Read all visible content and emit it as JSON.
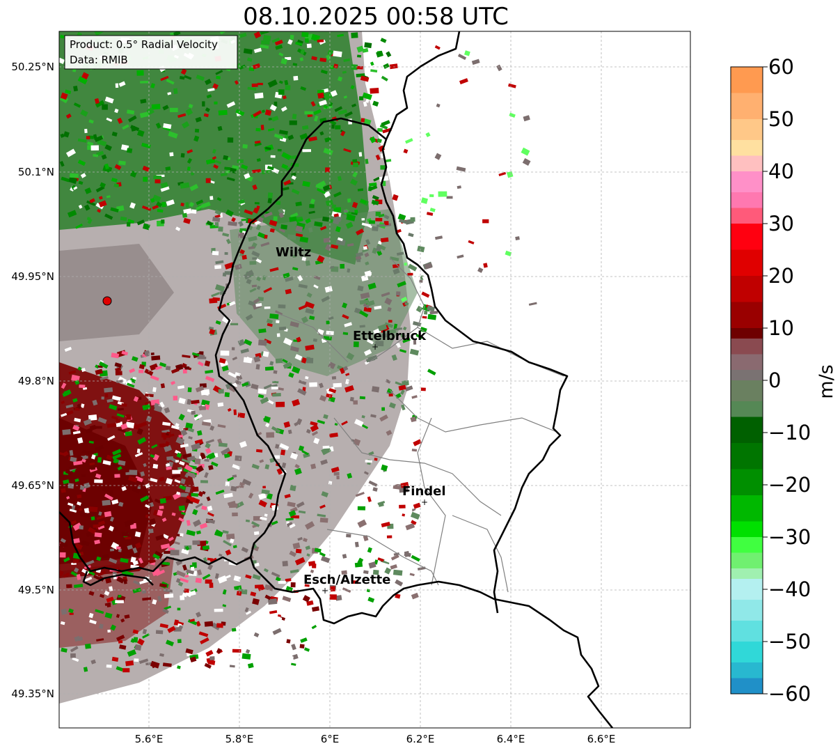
{
  "title": "08.10.2025 00:58 UTC",
  "info_box": {
    "product": "Product: 0.5° Radial Velocity",
    "data_source": "Data: RMIB"
  },
  "map": {
    "y_ticks": [
      "50.25°N",
      "50.1°N",
      "49.95°N",
      "49.8°N",
      "49.65°N",
      "49.5°N",
      "49.35°N"
    ],
    "x_ticks": [
      "5.6°E",
      "5.8°E",
      "6°E",
      "6.2°E",
      "6.4°E",
      "6.6°E"
    ],
    "cities": [
      {
        "name": "Wiltz"
      },
      {
        "name": "Ettelbruck"
      },
      {
        "name": "Findel"
      },
      {
        "name": "Esch/Alzette"
      }
    ]
  },
  "colorbar": {
    "unit": "m/s",
    "tick_labels": [
      "60",
      "50",
      "40",
      "30",
      "20",
      "10",
      "0",
      "−10",
      "−20",
      "−30",
      "−40",
      "−50",
      "−60"
    ],
    "min": -60,
    "max": 60
  },
  "colors": {
    "border": "#000000",
    "region_border": "#808080",
    "radar_site": "#e00000"
  }
}
